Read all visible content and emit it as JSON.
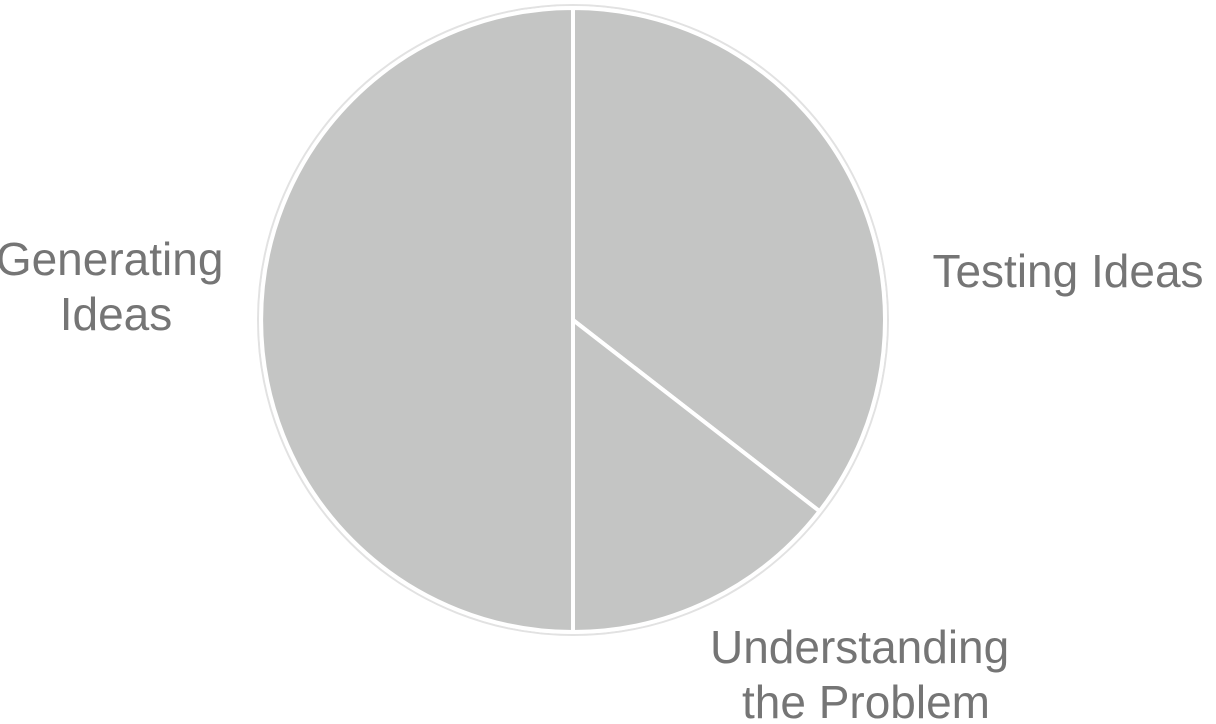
{
  "chart_data": {
    "type": "pie",
    "title": "",
    "slices": [
      {
        "label": "Testing Ideas",
        "lines": [
          "Testing Ideas"
        ],
        "value": 35.5,
        "color": "#c4c5c4"
      },
      {
        "label": "Understanding the Problem",
        "lines": [
          "Understanding",
          "the Problem"
        ],
        "value": 14.5,
        "color": "#c4c5c4"
      },
      {
        "label": "Generating Ideas",
        "lines": [
          "Generating",
          "Ideas"
        ],
        "value": 50,
        "color": "#c4c5c4"
      }
    ],
    "start_angle_deg": 0,
    "direction": "clockwise",
    "slice_border_color": "#ffffff",
    "outline_color": "#e2e2e2",
    "label_color": "#757575",
    "legend": "none"
  }
}
